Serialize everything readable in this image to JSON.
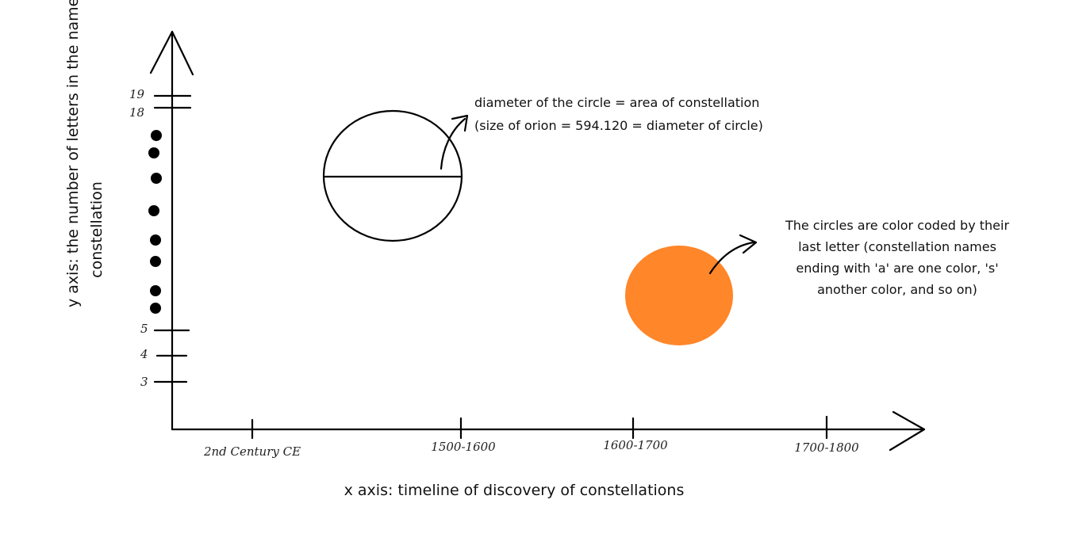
{
  "x_axis": {
    "title": "x axis: timeline of discovery of constellations",
    "ticks": [
      "2nd Century CE",
      "1500-1600",
      "1600-1700",
      "1700-1800"
    ]
  },
  "y_axis": {
    "title_line1": "y axis: the number of letters in the name of a",
    "title_line2": "constellation",
    "ticks": [
      "3",
      "4",
      "5",
      "18",
      "19"
    ]
  },
  "notes": {
    "diameter_line1": "diameter of the circle = area of constellation",
    "diameter_line2": "(size of orion = 594.120 = diameter of circle)",
    "color_line1": "The circles are color coded by their",
    "color_line2": "last letter (constellation names",
    "color_line3": "ending with 'a' are one color, 's'",
    "color_line4": "another color, and so on)"
  },
  "colors": {
    "example_circle_fill": "#FF8629",
    "ink": "#000000"
  }
}
